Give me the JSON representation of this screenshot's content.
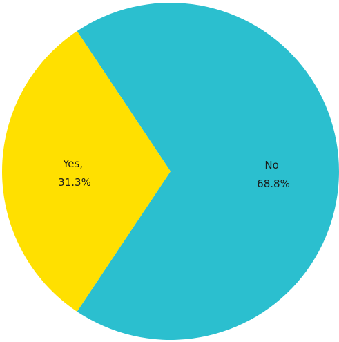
{
  "chart_data": {
    "type": "pie",
    "slices": [
      {
        "label": "No",
        "label_line1": "No",
        "label_line2": "68.8%",
        "value": 68.8,
        "color": "#2bbfcf"
      },
      {
        "label": "Yes",
        "label_line1": "Yes,",
        "label_line2": "31.3%",
        "value": 31.3,
        "color": "#ffe000"
      }
    ]
  }
}
